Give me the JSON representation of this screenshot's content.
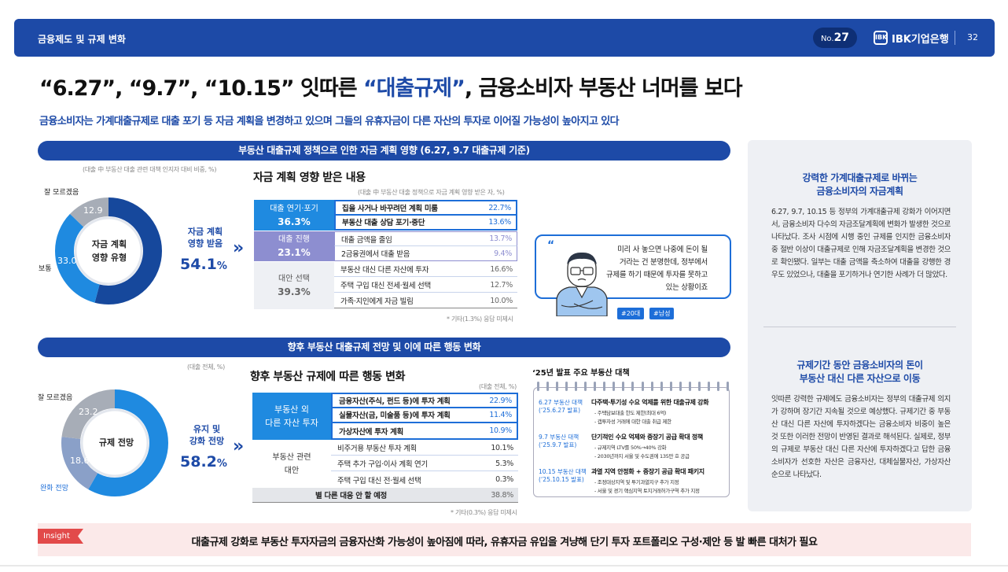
{
  "header": {
    "section": "금융제도 및 규제 변화",
    "issue_prefix": "No.",
    "issue_number": "27",
    "logo_mark": "IBK",
    "logo_text": "IBK기업은행",
    "page_number": "32"
  },
  "title": {
    "part1": "“6.27”, “9.7”, “10.15” 잇따른 ",
    "highlight": "“대출규제”",
    "part2": ", 금융소비자 부동산 너머를 보다"
  },
  "subtitle": "금융소비자는 가계대출규제로 대출 포기 등 자금 계획을 변경하고 있으며 그들의 유휴자금이 다른 자산의 투자로 이어질 가능성이 높아지고 있다",
  "section1": {
    "bar": "부동산 대출규제 정책으로 인한 자금 계획 영향 (6.27, 9.7 대출규제 기준)",
    "donut_note": "(대출 中 부동산 대출 관련 대책 인지자 대비 비중, %)",
    "donut_center": [
      "자금 계획",
      "영향 유형"
    ],
    "donut": [
      {
        "label": "잘 모르겠음",
        "value": 12.9,
        "color": "#a7adb7"
      },
      {
        "label": "보통",
        "value": 33.0,
        "color": "#1f8ae0"
      },
      {
        "label": "자금 계획 영향 받음",
        "value": 54.1,
        "color": "#16489c"
      }
    ],
    "val_unknown": "12.9",
    "val_normal": "33.0",
    "lbl_unknown": "잘 모르겠음",
    "lbl_normal": "보통",
    "big_label": [
      "자금 계획",
      "영향 받음"
    ],
    "big_value": "54.1",
    "big_unit": "%",
    "chevron": "»",
    "table_title": "자금 계획 영향 받은 내용",
    "table_note": "(대출 中 부동산 대출 정책으로 자금 계획 영향 받은 자, %)",
    "groups": [
      {
        "name": "대출 연기·포기",
        "value": "36.3%",
        "rows": [
          {
            "label": "집을 사거나 바꾸려던 계획 미룸",
            "pct": "22.7%"
          },
          {
            "label": "부동산 대출 상담 포기·중단",
            "pct": "13.6%"
          }
        ]
      },
      {
        "name": "대출 진행",
        "value": "23.1%",
        "rows": [
          {
            "label": "대출 금액을 줄임",
            "pct": "13.7%"
          },
          {
            "label": "2금융권에서 대출 받음",
            "pct": "9.4%"
          }
        ]
      },
      {
        "name": "대안 선택",
        "value": "39.3%",
        "rows": [
          {
            "label": "부동산 대신 다른 자산에 투자",
            "pct": "16.6%"
          },
          {
            "label": "주택 구입 대신 전세·월세 선택",
            "pct": "12.7%"
          },
          {
            "label": "가족·지인에게 자금 빌림",
            "pct": "10.0%"
          }
        ]
      }
    ],
    "footnote": "* 기타(1.3%) 응답 미제시",
    "bubble_quote": "“",
    "bubble": [
      "미리 사 놓으면 나중에 돈이 될",
      "거라는 건 분명한데, 정부에서",
      "규제를 하기 때문에 투자를 못하고",
      "있는 상황이죠"
    ],
    "tags": [
      "#20대",
      "#남성"
    ]
  },
  "section2": {
    "bar": "향후 부동산 대출규제 전망 및 이에 따른 행동 변화",
    "donut_note": "(대출 전체, %)",
    "donut_center": [
      "규제 전망"
    ],
    "donut": [
      {
        "label": "잘 모르겠음",
        "value": 23.2,
        "color": "#a7adb7"
      },
      {
        "label": "완화 전망",
        "value": 18.6,
        "color": "#8aa0c8"
      },
      {
        "label": "유지 및 강화 전망",
        "value": 58.2,
        "color": "#1f8ae0"
      }
    ],
    "val_unknown": "23.2",
    "val_ease": "18.6",
    "lbl_unknown": "잘 모르겠음",
    "lbl_ease": "완화 전망",
    "big_label": [
      "유지 및",
      "강화 전망"
    ],
    "big_value": "58.2",
    "big_unit": "%",
    "chevron": "»",
    "table_title": "향후 부동산 규제에 따른 행동 변화",
    "table_note": "(대출 전체, %)",
    "group1": {
      "name": [
        "부동산 외",
        "다른 자산 투자"
      ],
      "rows": [
        {
          "label": "금융자산(주식, 펀드 등)에 투자 계획",
          "pct": "22.9%"
        },
        {
          "label": "실물자산(금, 미술품 등)에 투자 계획",
          "pct": "11.4%"
        },
        {
          "label": "가상자산에 투자 계획",
          "pct": "10.9%"
        }
      ]
    },
    "group2": {
      "name": [
        "부동산 관련",
        "대안"
      ],
      "rows": [
        {
          "label": "비주거용 부동산 투자 계획",
          "pct": "10.1%"
        },
        {
          "label": "주택 추가 구입·이사 계획 연기",
          "pct": "5.3%"
        },
        {
          "label": "주택 구입 대신 전·월세 선택",
          "pct": "0.3%"
        }
      ]
    },
    "no_action": {
      "label": "별 다른 대응 안 할 예정",
      "pct": "38.8%"
    },
    "footnote": "* 기타(0.3%) 응답 미제시",
    "schedule_title": "‘25년 발표 주요 부동산 대책",
    "schedule": [
      {
        "date1": "6.27 부동산 대책",
        "date2": "(‘25.6.27 발표)",
        "head": "다주택·투기성 수요 억제를 위한 대출규제 강화",
        "items": [
          "- 주택담보대출 한도 제한(최대 6억)",
          "- 갭투자성 거래에 대한 대출 취급 제한"
        ]
      },
      {
        "date1": "9.7 부동산 대책",
        "date2": "(‘25.9.7 발표)",
        "head": "단기적인 수요 억제와 중장기 공급 확대 정책",
        "items": [
          "- 규제지역 LTV를 50%→40% 강화",
          "- 2030년까지 서울 및 수도권에 135만 호 공급"
        ]
      },
      {
        "date1": "10.15 부동산 대책",
        "date2": "(‘25.10.15 발표)",
        "head": "과열 지역 안정화 + 중장기 공급 확대 패키지",
        "items": [
          "- 조정대상지역 및 투기과열지구 추가 지정",
          "- 서울 및 경기 핵심지역 토지거래허가구역 추가 지정"
        ]
      }
    ]
  },
  "side": {
    "h1": [
      "강력한 가계대출규제로 바뀌는",
      "금융소비자의 자금계획"
    ],
    "p1": "6.27, 9.7, 10.15 등 정부의 가계대출규제 강화가 이어지면서, 금융소비자 다수의 자금조달계획에 변화가 발생한 것으로 나타났다. 조사 시점에 시행 중인 규제를 인지한 금융소비자 중 절반 이상이 대출규제로 인해 자금조달계획을 변경한 것으로 확인됐다. 일부는 대출 금액을 축소하여 대출을 강행한 경우도 있었으나, 대출을 포기하거나 연기한 사례가 더 많았다.",
    "h2": [
      "규제기간 동안 금융소비자의 돈이",
      "부동산 대신 다른 자산으로 이동"
    ],
    "p2": "잇따른 강력한 규제에도 금융소비자는 정부의 대출규제 의지가 강하며 장기간 지속될 것으로 예상했다. 규제기간 중 부동산 대신 다른 자산에 투자하겠다는 금융소비자 비중이 높은 것 또한 이러한 전망이 반영된 결과로 해석된다. 실제로, 정부의 규제로 부동산 대신 다른 자산에 투자하겠다고 답한 금융소비자가 선호한 자산은 금융자산, 대체실물자산, 가상자산 순으로 나타났다."
  },
  "insight": {
    "tag": "Insight",
    "text": "대출규제 강화로 부동산 투자자금의 금융자산화 가능성이 높아짐에 따라, 유휴자금 유입을 겨냥해 단기 투자 포트폴리오 구성·제안 등 발 빠른 대처가 필요"
  },
  "colors": {
    "brand": "#1d4aa7",
    "accent": "#1d6ed8",
    "insight": "#e24a4a"
  },
  "icons": [
    "ibk-logo-icon",
    "chevron-double-right-icon",
    "person-illustration-icon",
    "quote-icon"
  ]
}
